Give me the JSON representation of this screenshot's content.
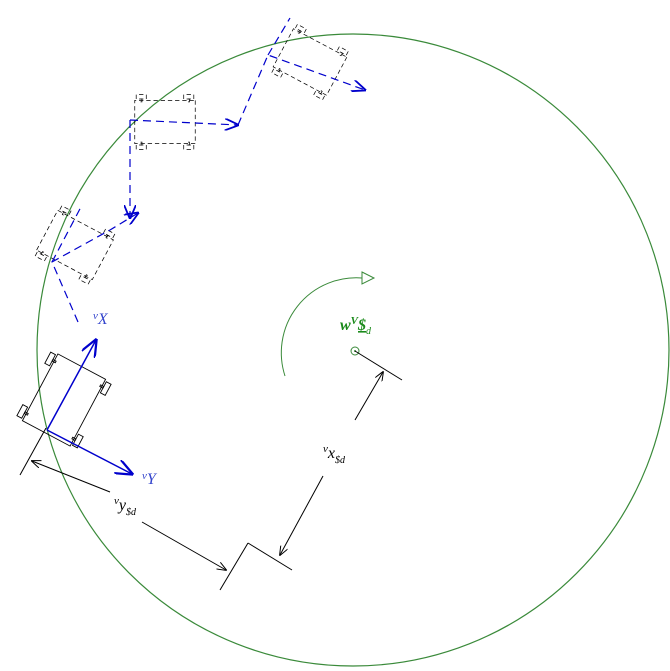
{
  "labels": {
    "robot_x_axis": {
      "sup": "v",
      "main": "X"
    },
    "robot_y_axis": {
      "sup": "v",
      "main": "Y"
    },
    "angular_velocity": {
      "main": "w",
      "sup": "V",
      "mid": "$",
      "sub": "d"
    },
    "x_offset": {
      "sup": "v",
      "main": "x",
      "sub": "$d"
    },
    "y_offset": {
      "sup": "v",
      "main": "y",
      "sub": "$d"
    }
  }
}
